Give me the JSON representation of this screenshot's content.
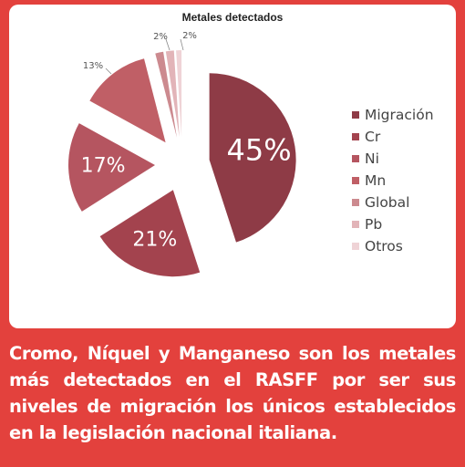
{
  "chart_data": {
    "type": "pie",
    "title": "Metales detectados",
    "exploded": true,
    "categories": [
      "Migración",
      "Cr",
      "Ni",
      "Mn",
      "Global",
      "Pb",
      "Otros"
    ],
    "values": [
      45,
      21,
      17,
      13,
      2,
      2,
      0
    ],
    "labels": [
      "45%",
      "21%",
      "17%",
      "13%",
      "2%",
      "2%",
      ""
    ],
    "colors": [
      "#8e3b46",
      "#a3434e",
      "#b55560",
      "#c05f66",
      "#cc8a8f",
      "#e2b4b8",
      "#efd3d6"
    ],
    "legend_position": "right"
  },
  "caption": "Cromo, Níquel y Manganeso son los metales más detectados en el RASFF por ser sus niveles de migración los únicos establecidos en la legislación nacional italiana."
}
